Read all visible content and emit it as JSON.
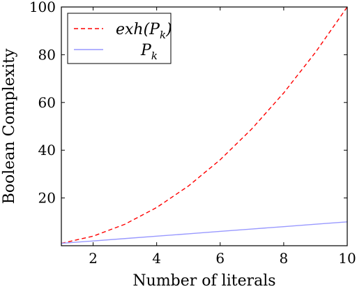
{
  "chart_data": {
    "type": "line",
    "xlabel": "Number of literals",
    "ylabel": "Boolean Complexity",
    "xlim": [
      1,
      10
    ],
    "ylim": [
      0,
      100
    ],
    "x_ticks": [
      "2",
      "4",
      "6",
      "8",
      "10"
    ],
    "y_ticks": [
      "20",
      "40",
      "60",
      "80",
      "100"
    ],
    "grid": false,
    "legend_position": "top-left",
    "series": [
      {
        "name": "exh(Pk)",
        "legend_main": "exh(P",
        "legend_sub": "k",
        "legend_close": ")",
        "color": "#ff0000",
        "style": "dashed",
        "x": [
          1,
          2,
          3,
          4,
          5,
          6,
          7,
          8,
          9,
          10
        ],
        "y": [
          1,
          4,
          9,
          16,
          25,
          36,
          49,
          64,
          81,
          100
        ]
      },
      {
        "name": "Pk",
        "legend_main": "P",
        "legend_sub": "k",
        "legend_close": "",
        "color": "#9999ff",
        "style": "solid",
        "x": [
          1,
          2,
          3,
          4,
          5,
          6,
          7,
          8,
          9,
          10
        ],
        "y": [
          1,
          2,
          3,
          4,
          5,
          6,
          7,
          8,
          9,
          10
        ]
      }
    ]
  }
}
